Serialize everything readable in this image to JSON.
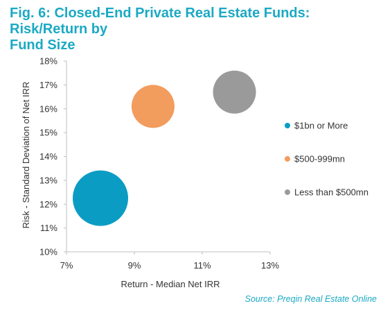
{
  "title_line1": "Fig. 6: Closed-End Private Real Estate Funds: Risk/Return by",
  "title_line2": "Fund Size",
  "source": "Source: Preqin Real Estate Online",
  "chart_data": {
    "type": "scatter",
    "title": "Fig. 6: Closed-End Private Real Estate Funds: Risk/Return by Fund Size",
    "xlabel": "Return - Median Net IRR",
    "ylabel": "Risk - Standard Deviation of Net IRR",
    "xlim": [
      7,
      13
    ],
    "ylim": [
      10,
      18
    ],
    "xticks": [
      "7%",
      "9%",
      "11%",
      "13%"
    ],
    "yticks": [
      "10%",
      "11%",
      "12%",
      "13%",
      "14%",
      "15%",
      "16%",
      "17%",
      "18%"
    ],
    "grid": false,
    "legend_position": "right",
    "series": [
      {
        "name": "$1bn or More",
        "x": 8.0,
        "y": 12.25,
        "size": "large",
        "color": "#0b9cc4"
      },
      {
        "name": "$500-999mn",
        "x": 9.55,
        "y": 16.1,
        "size": "medium",
        "color": "#f29c5e"
      },
      {
        "name": "Less than $500mn",
        "x": 11.95,
        "y": 16.7,
        "size": "medium",
        "color": "#9a9a9a"
      }
    ]
  }
}
